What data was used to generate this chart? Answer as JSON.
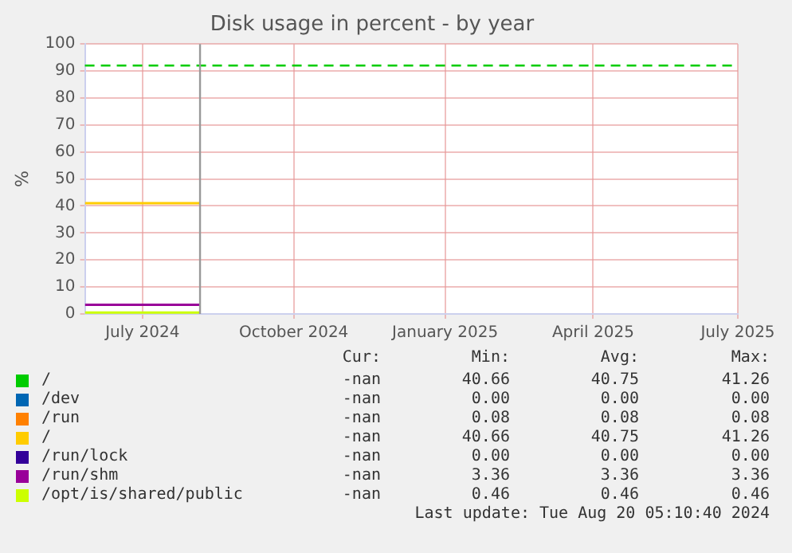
{
  "chart_data": {
    "type": "line",
    "title": "Disk usage in percent - by year",
    "ylabel": "%",
    "xlim": [
      "2024-06-11",
      "2025-07-13"
    ],
    "xticks": [
      {
        "value": "2024-07-16",
        "label": "July 2024"
      },
      {
        "value": "2024-10-16",
        "label": "October 2024"
      },
      {
        "value": "2025-01-16",
        "label": "January 2025"
      },
      {
        "value": "2025-04-16",
        "label": "April 2025"
      },
      {
        "value": "2025-07-13",
        "label": "July 2025"
      }
    ],
    "ylim": [
      0,
      100
    ],
    "yticks": [
      0,
      10,
      20,
      30,
      40,
      50,
      60,
      70,
      80,
      90,
      100
    ],
    "grid": true,
    "legend": "bottom",
    "marker": "none",
    "line_style": "solid",
    "x": [
      "2024-06-11",
      "2024-08-20"
    ],
    "series": [
      {
        "name": "/",
        "color": "#00cc00",
        "values": [
          null,
          null
        ]
      },
      {
        "name": "/dev",
        "color": "#0066b3",
        "values": [
          null,
          null
        ]
      },
      {
        "name": "/run",
        "color": "#ff8000",
        "values": [
          null,
          null
        ]
      },
      {
        "name": "/",
        "color": "#ffcc00",
        "values": [
          41,
          41
        ]
      },
      {
        "name": "/run/lock",
        "color": "#330099",
        "values": [
          null,
          null
        ]
      },
      {
        "name": "/run/shm",
        "color": "#990099",
        "values": [
          3.4,
          3.4
        ]
      },
      {
        "name": "/opt/is/shared/public",
        "color": "#ccff00",
        "values": [
          0.5,
          0.5
        ]
      }
    ],
    "ref_lines": [
      {
        "axis": "y",
        "value": 92,
        "label": null,
        "color": "#00cc00",
        "line_style": "dashed"
      },
      {
        "axis": "x",
        "value": "2024-08-20",
        "label": null,
        "color": "#999999",
        "line_style": "solid"
      }
    ],
    "annotations": [
      "Cur:",
      "Min:",
      "Avg:",
      "Max:",
      "-nan",
      "40.66",
      "40.75",
      "41.26",
      "-nan",
      "0.00",
      "0.00",
      "0.00",
      "-nan",
      "0.08",
      "0.08",
      "0.08",
      "-nan",
      "40.66",
      "40.75",
      "41.26",
      "-nan",
      "0.00",
      "0.00",
      "0.00",
      "-nan",
      "3.36",
      "3.36",
      "3.36",
      "-nan",
      "0.46",
      "0.46",
      "0.46",
      "Last update: Tue Aug 20 05:10:40 2024"
    ]
  }
}
